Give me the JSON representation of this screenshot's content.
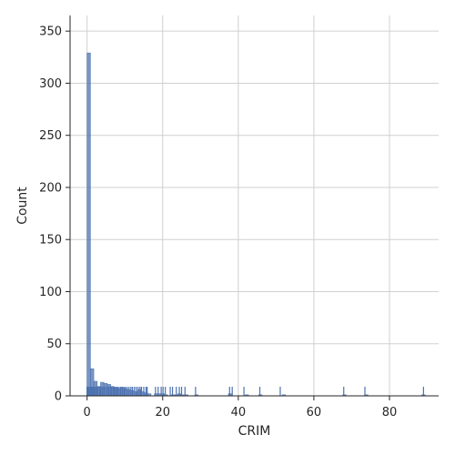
{
  "chart_data": {
    "type": "bar",
    "subtype": "histogram-with-rug",
    "title": "",
    "xlabel": "CRIM",
    "ylabel": "Count",
    "xlim": [
      -4.5,
      93
    ],
    "ylim": [
      0,
      365
    ],
    "xticks": [
      0,
      20,
      40,
      60,
      80
    ],
    "yticks": [
      0,
      50,
      100,
      150,
      200,
      250,
      300,
      350
    ],
    "grid": true,
    "color": "#4c72b0",
    "bin_width": 0.89,
    "bins": [
      {
        "x0": 0.0,
        "count": 329
      },
      {
        "x0": 0.89,
        "count": 26
      },
      {
        "x0": 1.78,
        "count": 14
      },
      {
        "x0": 2.67,
        "count": 9
      },
      {
        "x0": 3.56,
        "count": 13
      },
      {
        "x0": 4.45,
        "count": 12
      },
      {
        "x0": 5.34,
        "count": 11
      },
      {
        "x0": 6.23,
        "count": 9
      },
      {
        "x0": 7.12,
        "count": 8
      },
      {
        "x0": 8.01,
        "count": 7
      },
      {
        "x0": 8.9,
        "count": 8
      },
      {
        "x0": 9.79,
        "count": 7
      },
      {
        "x0": 10.68,
        "count": 6
      },
      {
        "x0": 11.57,
        "count": 5
      },
      {
        "x0": 12.46,
        "count": 4
      },
      {
        "x0": 13.35,
        "count": 6
      },
      {
        "x0": 14.24,
        "count": 4
      },
      {
        "x0": 15.13,
        "count": 3
      },
      {
        "x0": 16.02,
        "count": 2
      },
      {
        "x0": 17.8,
        "count": 2
      },
      {
        "x0": 18.69,
        "count": 2
      },
      {
        "x0": 19.58,
        "count": 2
      },
      {
        "x0": 20.47,
        "count": 1
      },
      {
        "x0": 22.25,
        "count": 1
      },
      {
        "x0": 23.14,
        "count": 1
      },
      {
        "x0": 24.03,
        "count": 2
      },
      {
        "x0": 24.92,
        "count": 1
      },
      {
        "x0": 25.81,
        "count": 1
      },
      {
        "x0": 28.48,
        "count": 1
      },
      {
        "x0": 37.38,
        "count": 2
      },
      {
        "x0": 41.83,
        "count": 1
      },
      {
        "x0": 45.39,
        "count": 1
      },
      {
        "x0": 51.62,
        "count": 1
      },
      {
        "x0": 67.64,
        "count": 1
      },
      {
        "x0": 73.42,
        "count": 1
      },
      {
        "x0": 88.55,
        "count": 1
      }
    ],
    "rug_values": [
      0.01,
      0.03,
      0.06,
      0.1,
      0.15,
      0.2,
      0.3,
      0.4,
      0.55,
      0.7,
      0.85,
      1.0,
      1.2,
      1.4,
      1.6,
      1.8,
      2.0,
      2.3,
      2.6,
      2.9,
      3.3,
      3.7,
      4.1,
      4.5,
      4.9,
      5.3,
      5.7,
      6.1,
      6.5,
      6.9,
      7.3,
      7.7,
      8.1,
      8.5,
      8.9,
      9.3,
      9.7,
      10.1,
      10.6,
      11.1,
      11.6,
      12.0,
      12.5,
      13.0,
      13.5,
      14.0,
      14.4,
      15.0,
      15.6,
      15.9,
      18.1,
      18.8,
      19.6,
      20.1,
      20.7,
      22.0,
      22.6,
      23.6,
      24.4,
      25.0,
      25.9,
      28.7,
      37.7,
      38.4,
      41.5,
      45.7,
      51.1,
      67.9,
      73.5,
      89.0
    ]
  }
}
